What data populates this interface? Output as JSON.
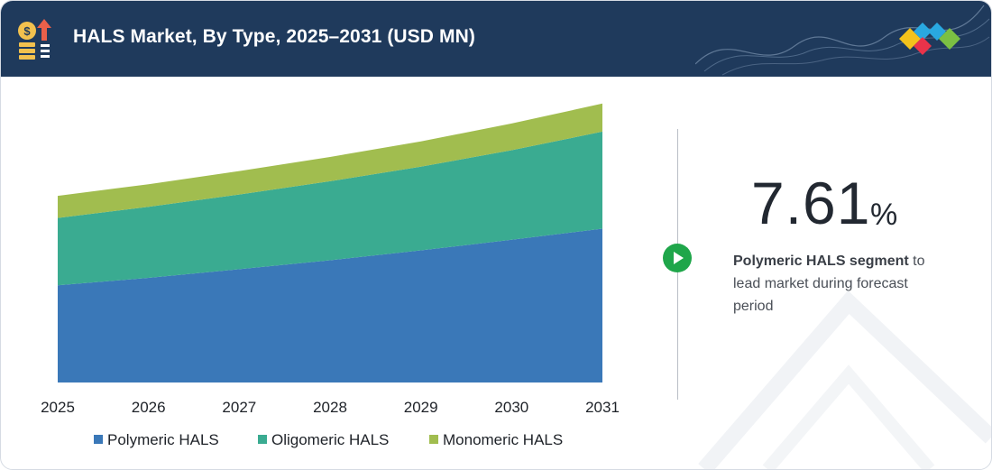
{
  "header": {
    "title": "HALS Market, By Type, 2025–2031 (USD MN)",
    "background_color": "#1f3a5c",
    "icon": "money-growth-icon",
    "logo": "diamond-cluster-logo-icon"
  },
  "highlight": {
    "value": "7.61",
    "unit": "%",
    "bold_text": "Polymeric HALS segment",
    "text": " to lead market during forecast period",
    "icon": "play-arrow-icon",
    "accent_color": "#1fa64a"
  },
  "chart_data": {
    "type": "area",
    "stacked": true,
    "x": [
      "2025",
      "2026",
      "2027",
      "2028",
      "2029",
      "2030",
      "2031"
    ],
    "series": [
      {
        "name": "Polymeric HALS",
        "color": "#3a78b8",
        "values": [
          360,
          388,
          420,
          453,
          490,
          529,
          570
        ]
      },
      {
        "name": "Oligomeric HALS",
        "color": "#3aab91",
        "values": [
          250,
          263,
          277,
          293,
          310,
          332,
          360
        ]
      },
      {
        "name": "Monomeric HALS",
        "color": "#a1bd4f",
        "values": [
          82,
          84,
          87,
          90,
          94,
          99,
          104
        ]
      }
    ],
    "ylim": [
      0,
      1040
    ],
    "grid": false,
    "legend_position": "bottom",
    "title": "",
    "xlabel": "",
    "ylabel": ""
  }
}
